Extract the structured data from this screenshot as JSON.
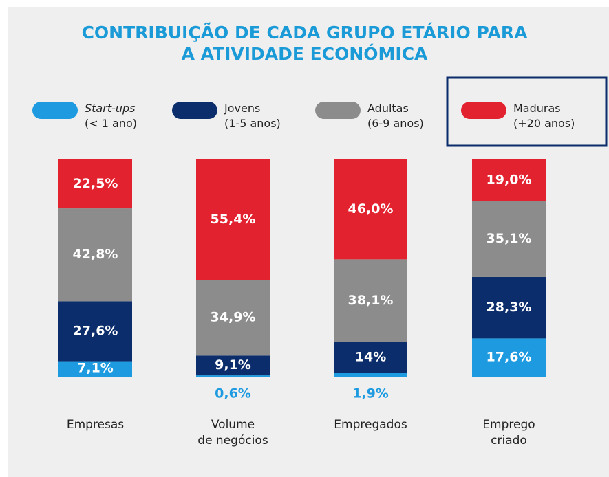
{
  "chart_data": {
    "type": "bar",
    "stacked": true,
    "title": "CONTRIBUIÇÃO DE CADA GRUPO ETÁRIO PARA\nA ATIVIDADE ECONÓMICA",
    "categories": [
      "Empresas",
      "Volume\nde negócios",
      "Empregados",
      "Emprego\ncriado"
    ],
    "ylim": [
      0,
      100
    ],
    "series": [
      {
        "name": "Start-ups",
        "range": "(< 1 ano)",
        "color": "#1e9be0",
        "values": [
          7.1,
          0.6,
          1.9,
          17.6
        ],
        "value_labels": [
          "7,1%",
          "0,6%",
          "1,9%",
          "17,6%"
        ]
      },
      {
        "name": "Jovens",
        "range": "(1-5 anos)",
        "color": "#0b2d6b",
        "values": [
          27.6,
          9.1,
          14,
          28.3
        ],
        "value_labels": [
          "27,6%",
          "9,1%",
          "14%",
          "28,3%"
        ]
      },
      {
        "name": "Adultas",
        "range": "(6-9 anos)",
        "color": "#8c8c8c",
        "values": [
          42.8,
          34.9,
          38.1,
          35.1
        ],
        "value_labels": [
          "42,8%",
          "34,9%",
          "38,1%",
          "35,1%"
        ]
      },
      {
        "name": "Maduras",
        "range": "(+20 anos)",
        "color": "#e3222f",
        "values": [
          22.5,
          55.4,
          46.0,
          19.0
        ],
        "value_labels": [
          "22,5%",
          "55,4%",
          "46,0%",
          "19,0%"
        ]
      }
    ]
  }
}
